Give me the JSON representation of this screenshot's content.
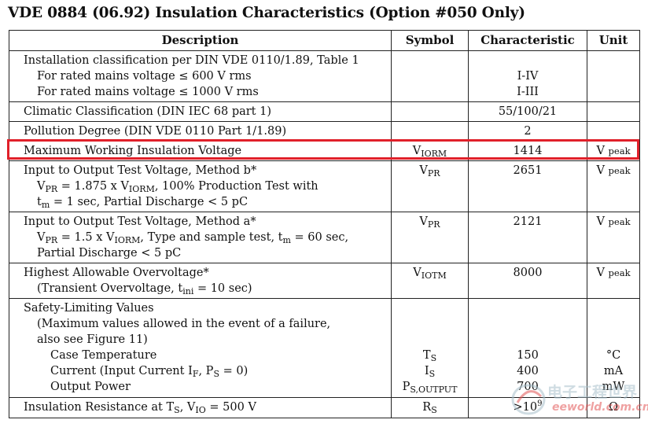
{
  "title": "VDE 0884 (06.92) Insulation Characteristics (Option #050 Only)",
  "headers": {
    "description": "Description",
    "symbol": "Symbol",
    "characteristic": "Characteristic",
    "unit": "Unit"
  },
  "rows": {
    "install": {
      "d1": "Installation classification per DIN VDE 0110/1.89, Table 1",
      "d2": "For rated mains voltage ≤ 600 V rms",
      "d3": "For rated mains voltage ≤ 1000 V rms",
      "c2": "I-IV",
      "c3": "I-III"
    },
    "climatic": {
      "d1": "Climatic Classification (DIN IEC 68 part 1)",
      "c1": "55/100/21"
    },
    "pollution": {
      "d1": "Pollution Degree (DIN VDE 0110 Part 1/1.89)",
      "c1": "2"
    },
    "viorm": {
      "d1": "Maximum Working Insulation Voltage",
      "s_main": "V",
      "s_sub": "IORM",
      "c1": "1414",
      "u_main": "V",
      "u_sub": "peak"
    },
    "method_b": {
      "d1": "Input to Output Test Voltage, Method b*",
      "d2_a": "V",
      "d2_b": "PR",
      "d2_c": " = 1.875 x V",
      "d2_d": "IORM",
      "d2_e": ", 100% Production Test with",
      "d3_a": "t",
      "d3_b": "m",
      "d3_c": " = 1 sec, Partial Discharge < 5 pC",
      "s_main": "V",
      "s_sub": "PR",
      "c1": "2651",
      "u_main": "V",
      "u_sub": "peak"
    },
    "method_a": {
      "d1": "Input to Output Test Voltage, Method a*",
      "d2_a": "V",
      "d2_b": "PR",
      "d2_c": " = 1.5 x V",
      "d2_d": "IORM",
      "d2_e": ", Type and sample test, t",
      "d2_f": "m",
      "d2_g": " = 60 sec,",
      "d3": "Partial Discharge < 5 pC",
      "s_main": "V",
      "s_sub": "PR",
      "c1": "2121",
      "u_main": "V",
      "u_sub": "peak"
    },
    "overvoltage": {
      "d1": "Highest Allowable Overvoltage*",
      "d2_a": "(Transient Overvoltage, t",
      "d2_b": "ini",
      "d2_c": " = 10 sec)",
      "s_main": "V",
      "s_sub": "IOTM",
      "c1": "8000",
      "u_main": "V",
      "u_sub": "peak"
    },
    "safety": {
      "d1": "Safety-Limiting Values",
      "d2": "(Maximum values allowed in the event of a failure,",
      "d3": "also see Figure 11)",
      "d4": "Case Temperature",
      "d5_a": "Current (Input Current I",
      "d5_b": "F",
      "d5_c": ", P",
      "d5_d": "S",
      "d5_e": " = 0)",
      "d6": "Output Power",
      "s4_main": "T",
      "s4_sub": "S",
      "s5_main": "I",
      "s5_sub": "S",
      "s6_main": "P",
      "s6_sub": "S,OUTPUT",
      "c4": "150",
      "c5": "400",
      "c6": "700",
      "u4": "°C",
      "u5": "mA",
      "u6": "mW"
    },
    "resistance": {
      "d1_a": "Insulation Resistance at T",
      "d1_b": "S",
      "d1_c": ", V",
      "d1_d": "IO",
      "d1_e": " = 500 V",
      "s_main": "R",
      "s_sub": "S",
      "c_main": ">10",
      "c_sup": "9",
      "u1": "Ω"
    }
  },
  "watermark": {
    "text": "电子工程世界",
    "url": "eeworld.com.cn"
  },
  "highlight_color": "#e0202a"
}
